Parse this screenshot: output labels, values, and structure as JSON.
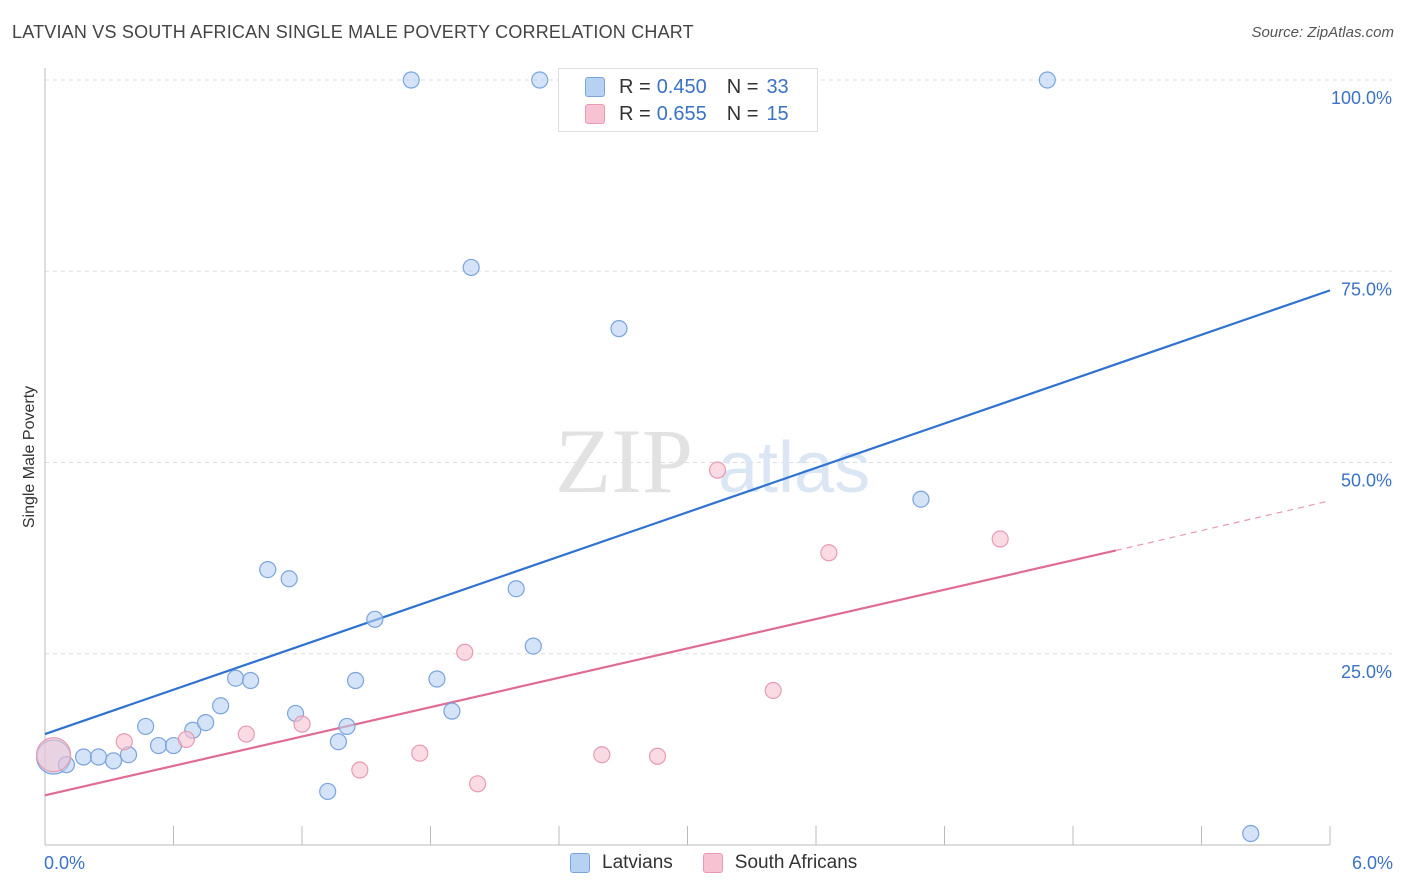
{
  "title": "LATVIAN VS SOUTH AFRICAN SINGLE MALE POVERTY CORRELATION CHART",
  "source": "Source: ZipAtlas.com",
  "watermark": {
    "zip": "ZIP",
    "atlas": "atlas"
  },
  "legend": {
    "rows": [
      {
        "r_label": "R =",
        "r_value": "0.450",
        "n_label": "N =",
        "n_value": "33"
      },
      {
        "r_label": "R =",
        "r_value": "0.655",
        "n_label": "N =",
        "n_value": "15"
      }
    ]
  },
  "colors": {
    "latvian_fill": "#b7d1f3",
    "latvian_stroke": "#7aa4dc",
    "latvian_line": "#2f72cf",
    "sa_fill": "#f7c3d2",
    "sa_stroke": "#e89ab1",
    "sa_line": "#e06b95",
    "tick_text": "#3a72c4"
  },
  "bottom_legend": {
    "latvians": "Latvians",
    "south_africans": "South Africans"
  },
  "chart_data": {
    "type": "scatter",
    "title": "LATVIAN VS SOUTH AFRICAN SINGLE MALE POVERTY CORRELATION CHART",
    "xlabel": "",
    "ylabel": "Single Male Poverty",
    "xlim": [
      0,
      6
    ],
    "ylim": [
      0,
      100
    ],
    "x_tick_labels": [
      "0.0%",
      "6.0%"
    ],
    "y_ticks": [
      {
        "value": 25,
        "label": "25.0%"
      },
      {
        "value": 50,
        "label": "50.0%"
      },
      {
        "value": 75,
        "label": "75.0%"
      },
      {
        "value": 100,
        "label": "100.0%"
      }
    ],
    "series": [
      {
        "name": "Latvians",
        "r": 0.45,
        "n": 33,
        "trend": {
          "x0": 0,
          "y0": 14.5,
          "x1": 6,
          "y1": 72.5
        },
        "points": [
          {
            "x": 0.04,
            "y": 11.5,
            "size": "large"
          },
          {
            "x": 0.1,
            "y": 10.5
          },
          {
            "x": 0.18,
            "y": 11.5
          },
          {
            "x": 0.25,
            "y": 11.5
          },
          {
            "x": 0.32,
            "y": 11.0
          },
          {
            "x": 0.39,
            "y": 11.8
          },
          {
            "x": 0.47,
            "y": 15.5
          },
          {
            "x": 0.53,
            "y": 13.0
          },
          {
            "x": 0.6,
            "y": 13.0
          },
          {
            "x": 0.69,
            "y": 15.0
          },
          {
            "x": 0.75,
            "y": 16.0
          },
          {
            "x": 0.82,
            "y": 18.2
          },
          {
            "x": 0.89,
            "y": 21.8
          },
          {
            "x": 0.96,
            "y": 21.5
          },
          {
            "x": 1.04,
            "y": 36.0
          },
          {
            "x": 1.14,
            "y": 34.8
          },
          {
            "x": 1.17,
            "y": 17.2
          },
          {
            "x": 1.32,
            "y": 7.0
          },
          {
            "x": 1.37,
            "y": 13.5
          },
          {
            "x": 1.41,
            "y": 15.5
          },
          {
            "x": 1.45,
            "y": 21.5
          },
          {
            "x": 1.54,
            "y": 29.5
          },
          {
            "x": 1.71,
            "y": 100
          },
          {
            "x": 1.83,
            "y": 21.7
          },
          {
            "x": 1.9,
            "y": 17.5
          },
          {
            "x": 1.99,
            "y": 75.5
          },
          {
            "x": 2.2,
            "y": 33.5
          },
          {
            "x": 2.28,
            "y": 26.0
          },
          {
            "x": 2.31,
            "y": 100
          },
          {
            "x": 2.68,
            "y": 67.5
          },
          {
            "x": 4.09,
            "y": 45.2
          },
          {
            "x": 4.68,
            "y": 100
          },
          {
            "x": 5.63,
            "y": 1.5
          }
        ]
      },
      {
        "name": "South Africans",
        "r": 0.655,
        "n": 15,
        "trend": {
          "x0": 0,
          "y0": 6.5,
          "x1": 5.0,
          "y1": 38.5,
          "dash_x1": 6,
          "dash_y1": 45.0
        },
        "points": [
          {
            "x": 0.04,
            "y": 11.8,
            "size": "large"
          },
          {
            "x": 0.37,
            "y": 13.5
          },
          {
            "x": 0.66,
            "y": 13.8
          },
          {
            "x": 0.94,
            "y": 14.5
          },
          {
            "x": 1.2,
            "y": 15.8
          },
          {
            "x": 1.47,
            "y": 9.8
          },
          {
            "x": 1.75,
            "y": 12.0
          },
          {
            "x": 1.96,
            "y": 25.2
          },
          {
            "x": 2.02,
            "y": 8.0
          },
          {
            "x": 2.6,
            "y": 11.8
          },
          {
            "x": 2.86,
            "y": 11.6
          },
          {
            "x": 3.14,
            "y": 49.0
          },
          {
            "x": 3.4,
            "y": 20.2
          },
          {
            "x": 3.66,
            "y": 38.2
          },
          {
            "x": 4.46,
            "y": 40.0
          }
        ]
      }
    ]
  }
}
